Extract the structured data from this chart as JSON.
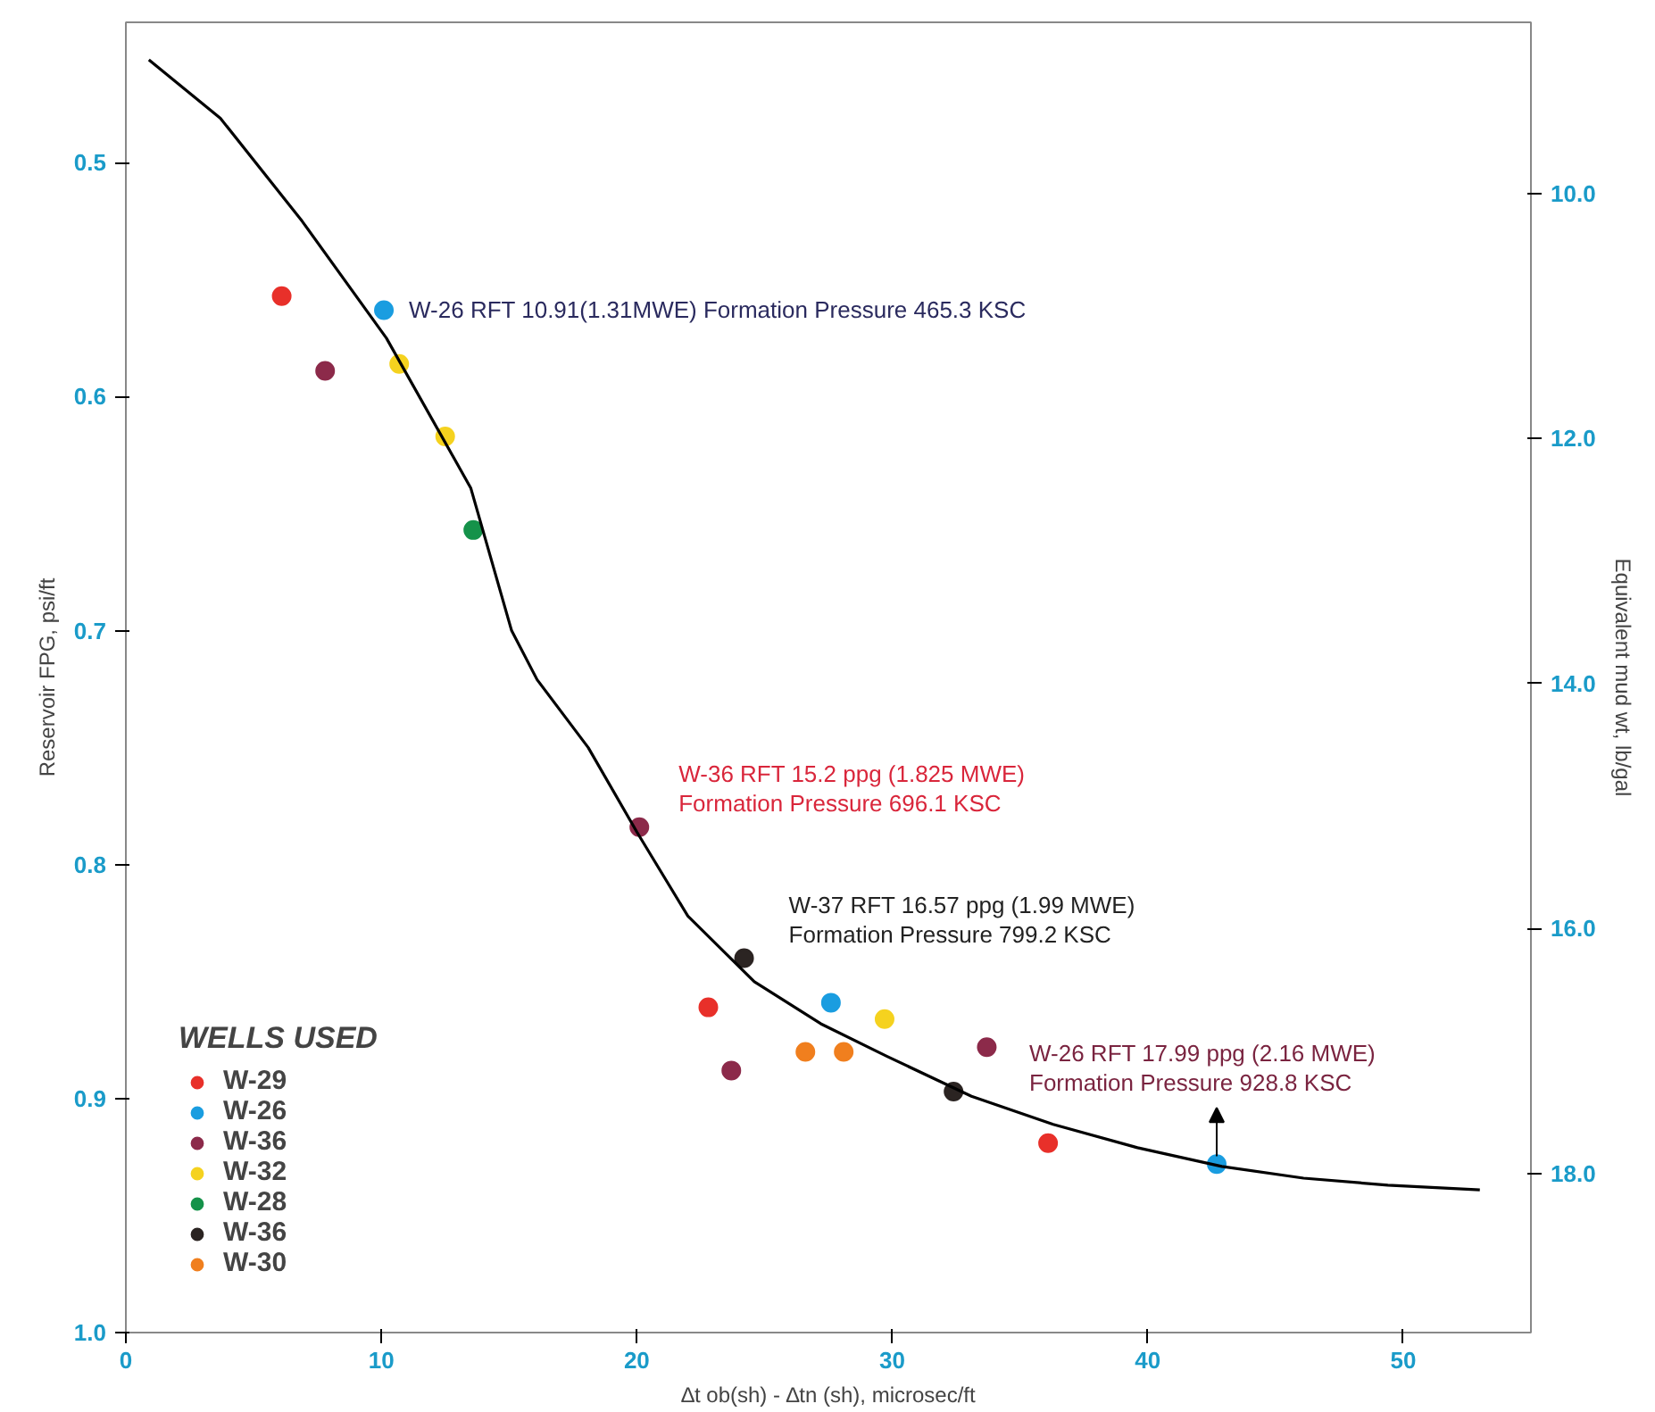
{
  "chart_data": {
    "type": "scatter",
    "xlabel": "∆t ob(sh) - ∆tn (sh), microsec/ft",
    "ylabel": "Reservoir FPG, psi/ft",
    "y2label": "Equivalent mud wt, lb/gal",
    "legend_title": "WELLS USED",
    "xlim": [
      0,
      55
    ],
    "xticks": [
      0,
      10,
      20,
      30,
      40,
      50
    ],
    "ylim": [
      1.0,
      0.44
    ],
    "yticks": [
      0.5,
      0.6,
      0.7,
      0.8,
      0.9,
      {
        "value": 1.0,
        "label": "1.0"
      }
    ],
    "y2lim": [
      19.3,
      8.6
    ],
    "y2ticks": [
      {
        "value": 10,
        "label": "10.0"
      },
      {
        "value": 12,
        "label": "12.0"
      },
      {
        "value": 14,
        "label": "14.0"
      },
      {
        "value": 16,
        "label": "16.0"
      },
      {
        "value": 18,
        "label": "18.0"
      }
    ],
    "grid": false,
    "legend": "bottom left",
    "marker": "circle",
    "series": [
      {
        "name": "W-29",
        "color": "#e8302a",
        "x": [
          6.1,
          22.8,
          36.1
        ],
        "values": [
          0.557,
          0.861,
          0.919
        ]
      },
      {
        "name": "W-26",
        "color": "#1a9de0",
        "x": [
          10.1,
          27.6,
          42.7
        ],
        "values": [
          0.563,
          0.859,
          0.928
        ]
      },
      {
        "name": "W-36",
        "color": "#8c2a4a",
        "x": [
          7.8,
          20.1,
          23.7,
          33.7
        ],
        "values": [
          0.589,
          0.784,
          0.888,
          0.878
        ]
      },
      {
        "name": "W-32",
        "color": "#f5d21f",
        "x": [
          10.7,
          12.5,
          29.7
        ],
        "values": [
          0.586,
          0.617,
          0.866
        ]
      },
      {
        "name": "W-28",
        "color": "#15924a",
        "x": [
          13.6
        ],
        "values": [
          0.657
        ]
      },
      {
        "name": "W-36",
        "color": "#2b2422",
        "x": [
          24.2,
          32.4
        ],
        "values": [
          0.84,
          0.897
        ]
      },
      {
        "name": "W-30",
        "color": "#f07f1e",
        "x": [
          26.6,
          28.1
        ],
        "values": [
          0.88,
          0.88
        ]
      },
      {
        "type": "line",
        "color": "#000000",
        "marker": "none",
        "x": [
          0.9,
          3.7,
          6.9,
          10.2,
          13.5,
          15.1,
          16.1,
          18.1,
          20,
          22,
          24.6,
          27.2,
          29.8,
          33.1,
          36.3,
          39.6,
          42.9,
          46.1,
          49.4,
          53
        ],
        "values": [
          0.456,
          0.481,
          0.525,
          0.575,
          0.639,
          0.7,
          0.721,
          0.75,
          0.786,
          0.822,
          0.85,
          0.868,
          0.882,
          0.899,
          0.911,
          0.921,
          0.929,
          0.934,
          0.937,
          0.939
        ]
      }
    ],
    "annotations": [
      {
        "text": "W-26 RFT 10.91(1.31MWE) Formation Pressure 465.3 KSC",
        "x": 10.1,
        "y": 0.563
      },
      {
        "text": "W-36 RFT 15.2 ppg (1.825 MWE)\nFormation Pressure 696.1 KSC",
        "x": 20.1,
        "y": 0.784
      },
      {
        "text": "W-37 RFT 16.57 ppg (1.99 MWE)\nFormation Pressure 799.2 KSC",
        "x": 24.2,
        "y": 0.84
      },
      {
        "text": "W-26 RFT 17.99 ppg  (2.16 MWE)\nFormation Pressure 928.8 KSC",
        "x": 42.7,
        "y": 0.928
      }
    ]
  }
}
